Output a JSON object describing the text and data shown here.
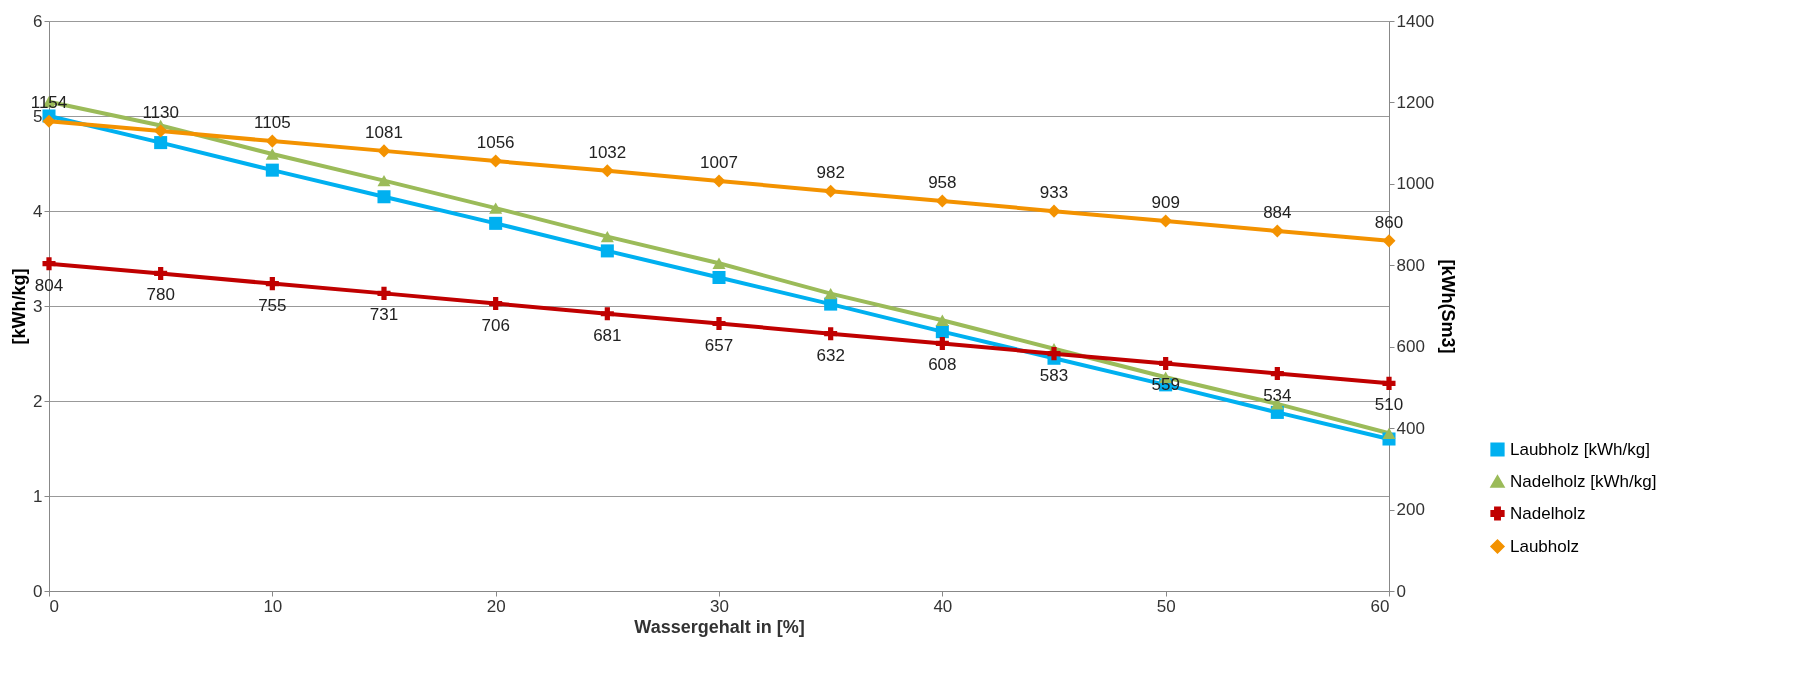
{
  "chart_data": {
    "type": "line",
    "xlabel": "Wassergehalt in [%]",
    "ylabel": "[kWh/kg]",
    "y2label": "[kWh(Sm3]",
    "x": [
      0,
      5,
      10,
      15,
      20,
      25,
      30,
      35,
      40,
      45,
      50,
      55,
      60
    ],
    "xlim": [
      0,
      60
    ],
    "xticks": [
      0,
      10,
      20,
      30,
      40,
      50,
      60
    ],
    "ylim": [
      0,
      6
    ],
    "yticks": [
      0,
      1,
      2,
      3,
      4,
      5,
      6
    ],
    "y2lim": [
      0,
      1400
    ],
    "y2ticks": [
      0,
      200,
      400,
      600,
      800,
      1000,
      1200,
      1400
    ],
    "grid": "y",
    "legend": "bottom right",
    "series": [
      {
        "name": "Laubholz [kWh/kg]",
        "color": "#00b0f0",
        "marker": "square",
        "values": [
          5.0,
          4.72,
          4.43,
          4.15,
          3.87,
          3.58,
          3.3,
          3.02,
          2.73,
          2.45,
          2.17,
          1.88,
          1.6
        ]
      },
      {
        "name": "Nadelholz [kWh/kg]",
        "color": "#9bbb59",
        "marker": "triangle",
        "values": [
          5.15,
          4.9,
          4.6,
          4.32,
          4.03,
          3.73,
          3.45,
          3.13,
          2.85,
          2.55,
          2.25,
          1.97,
          1.66
        ]
      },
      {
        "name": "Nadelholz",
        "color": "#c00000",
        "marker": "cross",
        "axis": "y2",
        "values": [
          804,
          780,
          755,
          731,
          706,
          681,
          657,
          632,
          608,
          583,
          559,
          534,
          510
        ],
        "value_labels": [
          "804",
          "780",
          "755",
          "731",
          "706",
          "681",
          "657",
          "632",
          "608",
          "583",
          "559",
          "534",
          "510"
        ]
      },
      {
        "name": "Laubholz",
        "color": "#f39200",
        "marker": "diamond",
        "axis": "y2",
        "values": [
          1154,
          1130,
          1105,
          1081,
          1056,
          1032,
          1007,
          982,
          958,
          933,
          909,
          884,
          860
        ],
        "value_labels": [
          "1154",
          "1130",
          "1105",
          "1081",
          "1056",
          "1032",
          "1007",
          "982",
          "958",
          "933",
          "909",
          "884",
          "860"
        ]
      }
    ]
  }
}
